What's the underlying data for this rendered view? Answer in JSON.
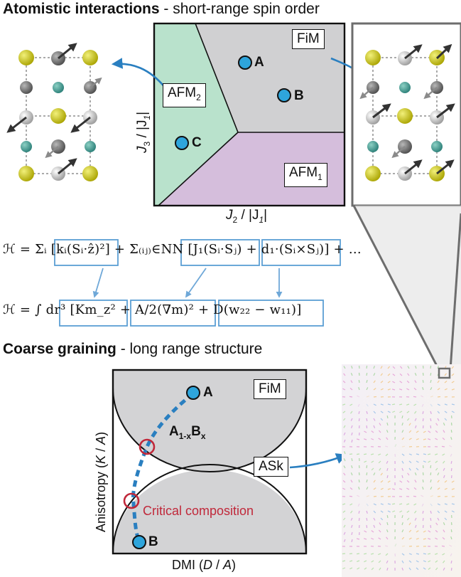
{
  "title_top_bold": "Atomistic interactions",
  "title_top_rest": " - short-range spin order",
  "title_bottom_bold": "Coarse graining",
  "title_bottom_rest": " - long range structure",
  "top_diagram": {
    "region_fim": "FiM",
    "region_afm2": "AFM",
    "region_afm2_sub": "2",
    "region_afm1": "AFM",
    "region_afm1_sub": "1",
    "point_a": "A",
    "point_b": "B",
    "point_c": "C",
    "y_axis_j": "J",
    "y_axis_sub": "3",
    "y_axis_rest": " / |J",
    "y_axis_sub2": "1",
    "x_axis_j": "J",
    "x_axis_sub": "2",
    "x_axis_rest": " / |J",
    "x_axis_sub2": "1",
    "colors": {
      "fim": "#d0d0d2",
      "afm2": "#b9e2cc",
      "afm1": "#d5bedc",
      "point": "#2ea5dc",
      "arrow": "#2a7fc0"
    }
  },
  "equations": {
    "eq1": "ℋ = Σᵢ [kᵢ(Sᵢ·ẑ)²] + Σ₍ᵢⱼ₎∈NN [J₁(Sᵢ·Sⱼ) + d₁·(Sᵢ×Sⱼ)] + …",
    "eq2": "ℋ = ∫ dr³ [Km_z² + A/2(∇m)² + D(w₂₂ − w₁₁)]"
  },
  "bottom_diagram": {
    "label_fim": "FiM",
    "label_ask": "ASk",
    "point_a": "A",
    "point_b": "B",
    "composition_main_a": "A",
    "composition_sub_a": "1-x",
    "composition_main_b": "B",
    "composition_sub_b": "x",
    "critical": "Critical composition",
    "y_axis_label": "Anisotropy (K / A)",
    "x_axis_label": "DMI (D / A)",
    "colors": {
      "region": "#d3d3d5",
      "dash": "#2a7fc0",
      "critical": "#c0283a"
    }
  }
}
